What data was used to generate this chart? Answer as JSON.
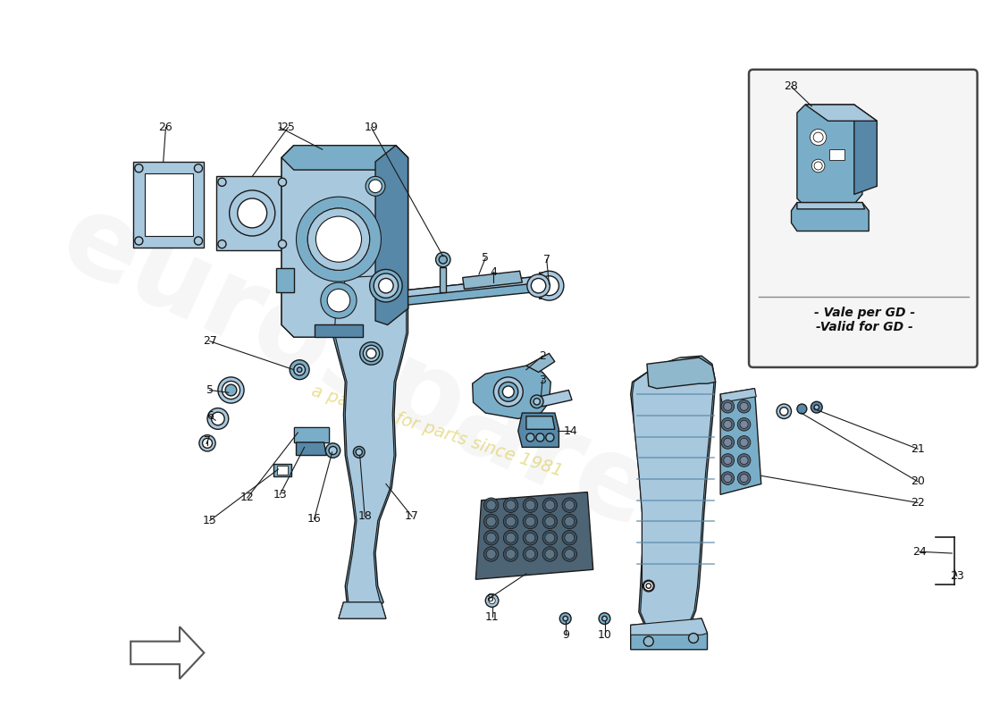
{
  "bg": "#ffffff",
  "blue_main": "#7aaec8",
  "blue_light": "#a8c8de",
  "blue_dark": "#5888a8",
  "blue_mid": "#90b8cc",
  "shadow": "#6898b8",
  "line": "#1a1a1a",
  "text": "#111111",
  "wm_text": "a passion for parts since 1981",
  "wm_color": "#d8c840",
  "wm_alpha": 0.55,
  "logo_color": "#d0d0d0",
  "logo_alpha": 0.18,
  "inset_text1": "- Vale per GD -",
  "inset_text2": "-Valid for GD -"
}
